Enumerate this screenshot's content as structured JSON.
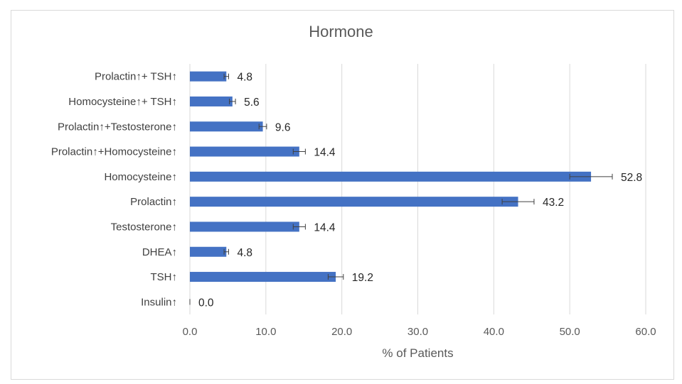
{
  "chart_data": {
    "type": "bar",
    "orientation": "horizontal",
    "title": "Hormone",
    "xlabel": "% of Patients",
    "ylabel": "",
    "xlim": [
      0,
      60
    ],
    "xticks": [
      "0.0",
      "10.0",
      "20.0",
      "30.0",
      "40.0",
      "50.0",
      "60.0"
    ],
    "grid": true,
    "legend": "none",
    "bar_color": "#4472c4",
    "error_bars": true,
    "categories": [
      "Prolactin↑+ TSH↑",
      "Homocysteine↑+ TSH↑",
      "Prolactin↑+Testosterone↑",
      "Prolactin↑+Homocysteine↑",
      "Homocysteine↑",
      "Prolactin↑",
      "Testosterone↑",
      "DHEA↑",
      "TSH↑",
      "Insulin↑"
    ],
    "values": [
      4.8,
      5.6,
      9.6,
      14.4,
      52.8,
      43.2,
      14.4,
      4.8,
      19.2,
      0.0
    ],
    "labels": [
      "4.8",
      "5.6",
      "9.6",
      "14.4",
      "52.8",
      "43.2",
      "14.4",
      "4.8",
      "19.2",
      "0.0"
    ],
    "errors": [
      0.3,
      0.4,
      0.5,
      0.8,
      2.8,
      2.1,
      0.8,
      0.3,
      1.0,
      0.0
    ]
  }
}
